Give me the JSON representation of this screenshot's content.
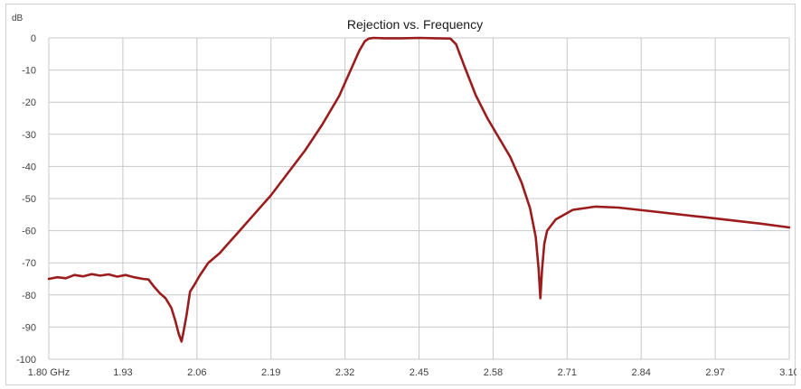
{
  "chart_data": {
    "type": "line",
    "title": "Rejection vs. Frequency",
    "ylabel": "dB",
    "xlabel": "",
    "xlim": [
      1.8,
      3.1
    ],
    "ylim": [
      -100,
      0
    ],
    "grid": true,
    "x_tick_labels": [
      "1.80 GHz",
      "1.93",
      "2.06",
      "2.19",
      "2.32",
      "2.45",
      "2.58",
      "2.71",
      "2.84",
      "2.97",
      "3.10"
    ],
    "x_ticks": [
      1.8,
      1.93,
      2.06,
      2.19,
      2.32,
      2.45,
      2.58,
      2.71,
      2.84,
      2.97,
      3.1
    ],
    "y_tick_labels": [
      "0",
      "-10",
      "-20",
      "-30",
      "-40",
      "-50",
      "-60",
      "-70",
      "-80",
      "-90",
      "-100"
    ],
    "y_ticks": [
      0,
      -10,
      -20,
      -30,
      -40,
      -50,
      -60,
      -70,
      -80,
      -90,
      -100
    ],
    "series": [
      {
        "color": "#9b1c1c",
        "x": [
          1.8,
          1.815,
          1.83,
          1.845,
          1.86,
          1.875,
          1.89,
          1.905,
          1.92,
          1.935,
          1.95,
          1.965,
          1.975,
          1.985,
          1.995,
          2.005,
          2.015,
          2.022,
          2.028,
          2.033,
          2.037,
          2.042,
          2.048,
          2.055,
          2.065,
          2.08,
          2.1,
          2.13,
          2.16,
          2.19,
          2.22,
          2.25,
          2.28,
          2.31,
          2.33,
          2.345,
          2.355,
          2.362,
          2.37,
          2.39,
          2.42,
          2.45,
          2.48,
          2.505,
          2.515,
          2.53,
          2.55,
          2.57,
          2.59,
          2.61,
          2.63,
          2.645,
          2.655,
          2.66,
          2.663,
          2.666,
          2.67,
          2.675,
          2.69,
          2.72,
          2.76,
          2.8,
          2.85,
          2.9,
          2.95,
          3.0,
          3.05,
          3.1
        ],
        "y": [
          -75.0,
          -74.5,
          -74.8,
          -73.8,
          -74.2,
          -73.5,
          -74.0,
          -73.6,
          -74.3,
          -73.8,
          -74.5,
          -75.0,
          -75.2,
          -77.5,
          -79.5,
          -81.0,
          -84.0,
          -88.0,
          -92.0,
          -94.5,
          -91.0,
          -86.0,
          -79.0,
          -77.0,
          -74.0,
          -70.0,
          -67.0,
          -61.0,
          -55.0,
          -49.0,
          -42.0,
          -35.0,
          -27.0,
          -18.0,
          -10.0,
          -4.0,
          -1.0,
          -0.2,
          0.0,
          -0.1,
          -0.1,
          0.0,
          -0.1,
          -0.2,
          -2.0,
          -9.0,
          -18.0,
          -25.0,
          -31.0,
          -37.0,
          -45.0,
          -53.0,
          -62.0,
          -72.0,
          -81.0,
          -72.0,
          -64.0,
          -60.0,
          -56.5,
          -53.5,
          -52.5,
          -52.8,
          -53.8,
          -54.8,
          -55.8,
          -56.8,
          -57.8,
          -59.0
        ]
      }
    ]
  }
}
